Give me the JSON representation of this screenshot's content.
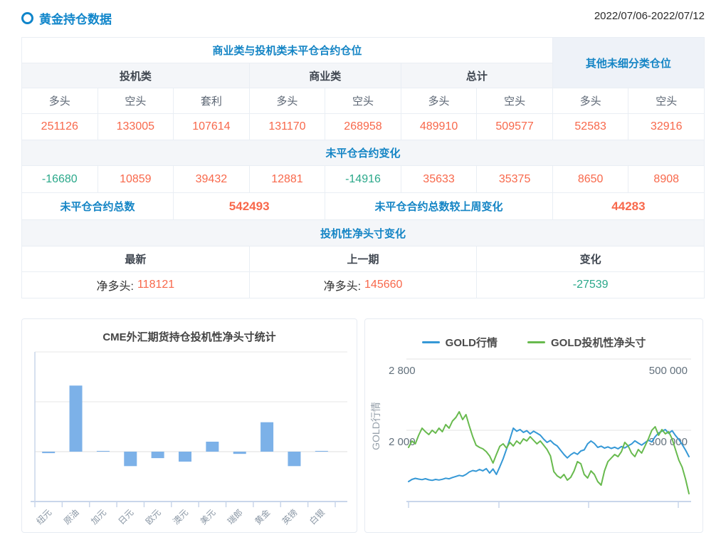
{
  "page": {
    "title": "黄金持仓数据",
    "date_range": "2022/07/06-2022/07/12"
  },
  "colors": {
    "accent_blue": "#1585c5",
    "title_blue": "#0f85ca",
    "positive": "#f8684b",
    "negative": "#2aa88a",
    "bar": "#7cb1e8",
    "line_blue": "#3598d6",
    "line_green": "#68ba4e",
    "axis": "#c9d6ea"
  },
  "table": {
    "group_headers": {
      "main": "商业类与投机类未平仓合约仓位",
      "other": "其他未细分类仓位"
    },
    "sub_headers": [
      "投机类",
      "商业类",
      "总计"
    ],
    "col_headers": [
      "多头",
      "空头",
      "套利",
      "多头",
      "空头",
      "多头",
      "空头",
      "多头",
      "空头"
    ],
    "positions": [
      "251126",
      "133005",
      "107614",
      "131170",
      "268958",
      "489910",
      "509577",
      "52583",
      "32916"
    ],
    "change_section_title": "未平仓合约变化",
    "changes": [
      "-16680",
      "10859",
      "39432",
      "12881",
      "-14916",
      "35633",
      "35375",
      "8650",
      "8908"
    ],
    "summary": {
      "total_label": "未平仓合约总数",
      "total_value": "542493",
      "weekly_change_label": "未平仓合约总数较上周变化",
      "weekly_change_value": "44283"
    },
    "net_section": {
      "title": "投机性净头寸变化",
      "col_headers": [
        "最新",
        "上一期",
        "变化"
      ],
      "latest_label": "净多头:",
      "latest_value": "118121",
      "previous_label": "净多头:",
      "previous_value": "145660",
      "change_value": "-27539"
    }
  },
  "chart_data": [
    {
      "type": "bar",
      "title": "CME外汇期货持仓投机性净头寸统计",
      "categories": [
        "纽元",
        "原油",
        "加元",
        "日元",
        "欧元",
        "澳元",
        "美元",
        "瑞郎",
        "黄金",
        "英镑",
        "白银"
      ],
      "values": [
        -6000,
        265000,
        3000,
        -58000,
        -26000,
        -40000,
        40000,
        -9000,
        118000,
        -58000,
        3000
      ],
      "ylim": [
        -200000,
        400000
      ],
      "grid_step": 200000,
      "tick_labels_shown": false,
      "xlabel": "",
      "ylabel": ""
    },
    {
      "type": "line",
      "title": "",
      "legend": [
        "GOLD行情",
        "GOLD投机性净头寸"
      ],
      "ylabel_left": "GOLD行情",
      "left_axis": {
        "range": [
          1200,
          2800
        ],
        "labels_shown": [
          "2 800",
          "2 000"
        ]
      },
      "right_axis": {
        "range": [
          100000,
          500000
        ],
        "labels_shown": [
          "500 000",
          "300 000"
        ]
      },
      "x_ticks": 4,
      "grid": true,
      "legend_position": "top",
      "series": [
        {
          "name": "GOLD行情",
          "axis": "left",
          "color": "#3598d6",
          "values": [
            1424,
            1448,
            1460,
            1452,
            1446,
            1456,
            1444,
            1438,
            1448,
            1442,
            1450,
            1462,
            1455,
            1470,
            1482,
            1494,
            1486,
            1504,
            1532,
            1548,
            1540,
            1560,
            1545,
            1570,
            1520,
            1566,
            1504,
            1590,
            1680,
            1790,
            1900,
            2024,
            1990,
            2008,
            1976,
            1996,
            1960,
            1990,
            1968,
            1945,
            1900,
            1864,
            1886,
            1848,
            1824,
            1776,
            1728,
            1690,
            1726,
            1750,
            1730,
            1768,
            1780,
            1848,
            1880,
            1852,
            1808,
            1822,
            1800,
            1814,
            1796,
            1810,
            1792,
            1818,
            1802,
            1826,
            1846,
            1882,
            1856,
            1834,
            1862,
            1888,
            1870,
            1928,
            1970,
            1990,
            2008,
            1966,
            1996,
            1942,
            1896,
            1840,
            1776,
            1704
          ]
        },
        {
          "name": "GOLD投机性净头寸",
          "axis": "right",
          "color": "#68ba4e",
          "values": [
            252000,
            270000,
            262000,
            286000,
            306000,
            296000,
            288000,
            300000,
            292000,
            306000,
            296000,
            316000,
            306000,
            326000,
            336000,
            352000,
            330000,
            344000,
            312000,
            282000,
            258000,
            252000,
            248000,
            240000,
            228000,
            208000,
            232000,
            255000,
            262000,
            250000,
            266000,
            256000,
            270000,
            262000,
            276000,
            270000,
            282000,
            272000,
            262000,
            270000,
            258000,
            246000,
            228000,
            184000,
            172000,
            166000,
            176000,
            160000,
            168000,
            186000,
            212000,
            206000,
            176000,
            166000,
            186000,
            176000,
            156000,
            146000,
            186000,
            212000,
            222000,
            232000,
            226000,
            240000,
            266000,
            256000,
            236000,
            226000,
            246000,
            236000,
            256000,
            276000,
            300000,
            310000,
            286000,
            302000,
            290000,
            296000,
            276000,
            246000,
            216000,
            196000,
            162000,
            122000
          ]
        }
      ]
    }
  ]
}
